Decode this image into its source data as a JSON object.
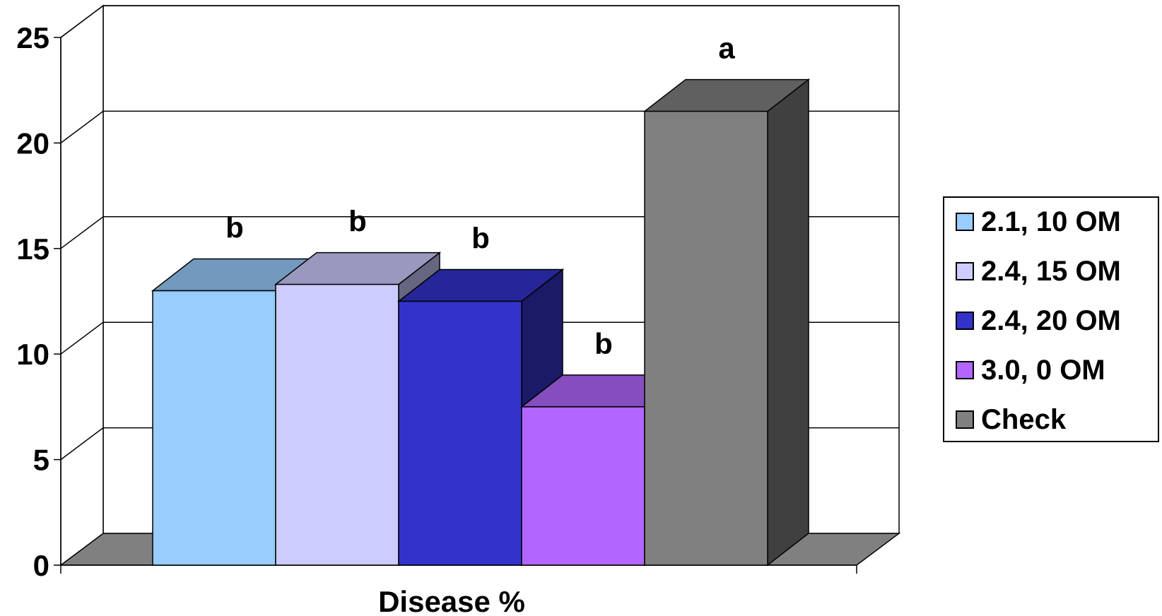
{
  "chart_data": {
    "type": "bar",
    "style": "3d-clustered",
    "title": "",
    "xlabel": "Disease %",
    "ylabel": "",
    "ylim": [
      0,
      25
    ],
    "y_ticks": [
      "0",
      "5",
      "10",
      "15",
      "20",
      "25"
    ],
    "grid": true,
    "legend_position": "right",
    "categories": [
      "Disease %"
    ],
    "series": [
      {
        "name": "2.1, 10 OM",
        "value": 13.0,
        "color": "#99ccff",
        "significance": "b"
      },
      {
        "name": "2.4, 15 OM",
        "value": 13.3,
        "color": "#ccccff",
        "significance": "b"
      },
      {
        "name": "2.4, 20 OM",
        "value": 12.5,
        "color": "#3333cc",
        "significance": "b"
      },
      {
        "name": "3.0, 0 OM",
        "value": 7.5,
        "color": "#b266ff",
        "significance": "b"
      },
      {
        "name": "Check",
        "value": 21.5,
        "color": "#808080",
        "significance": "a"
      }
    ]
  }
}
